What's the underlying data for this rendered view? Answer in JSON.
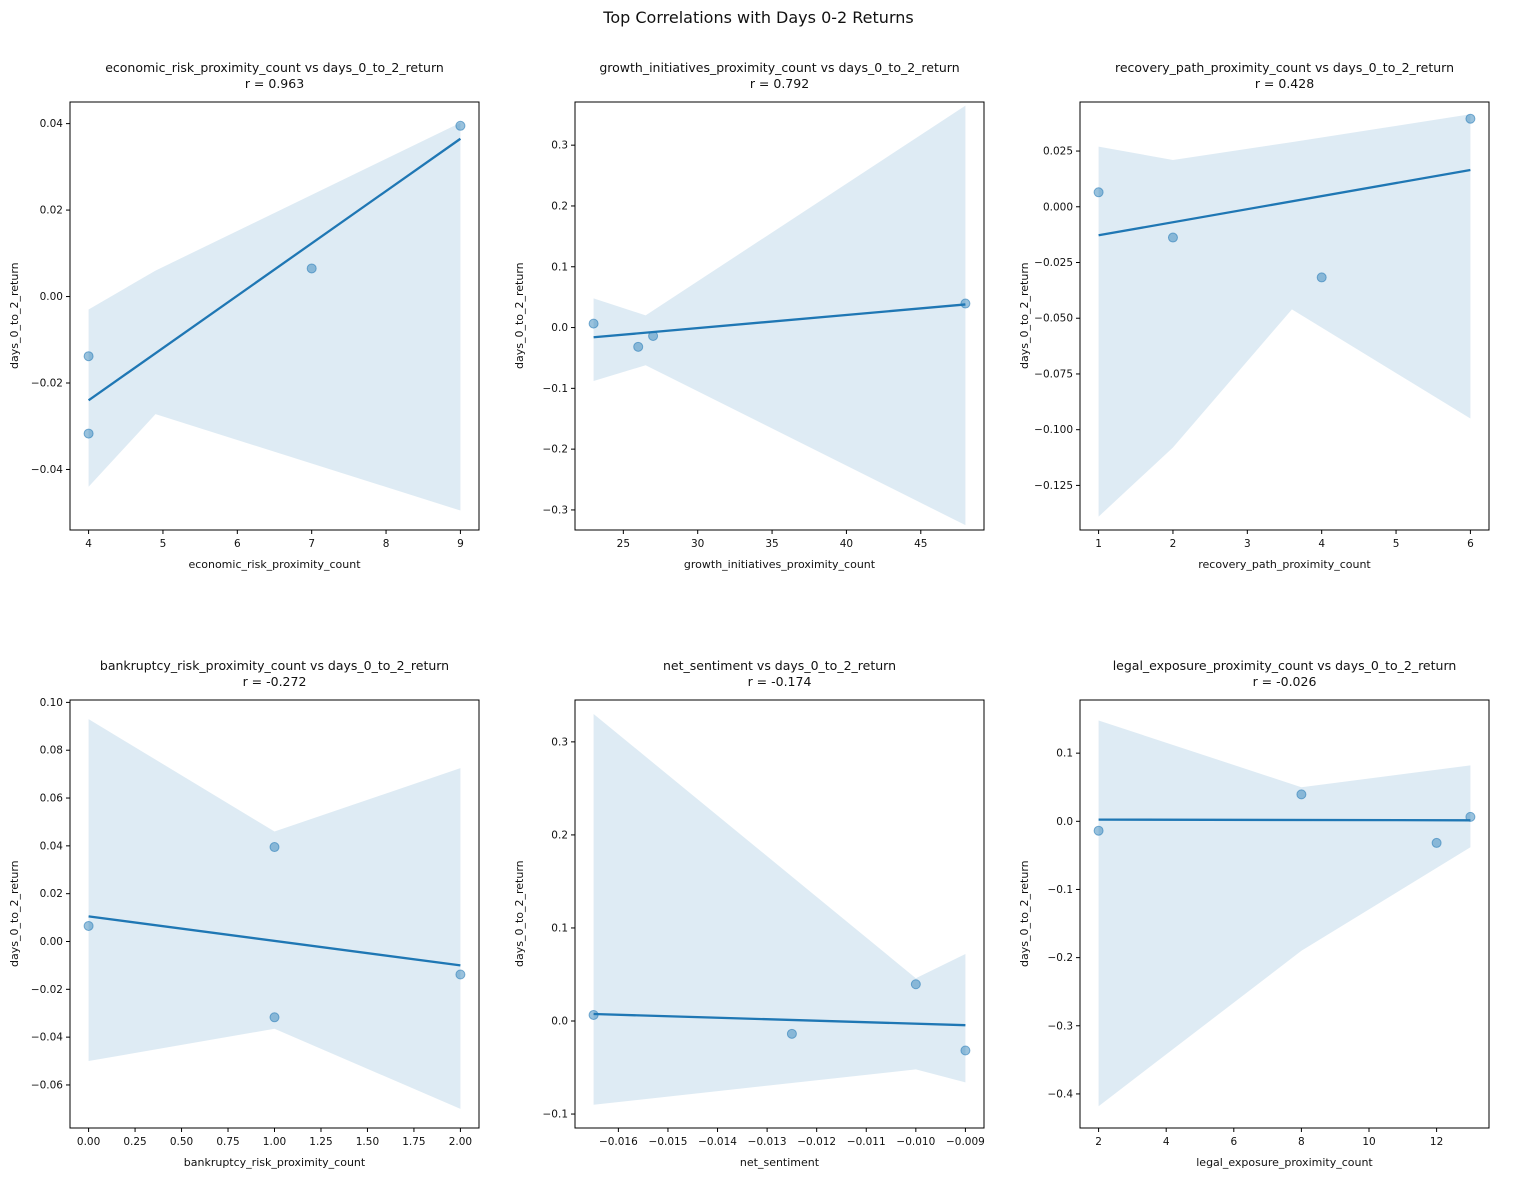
{
  "figure_title": "Top Correlations with Days 0-2 Returns",
  "colors": {
    "accent": "#1f77b4",
    "band_opacity": 0.15,
    "point_opacity": 0.45,
    "frame": "#000000",
    "text": "#111111"
  },
  "chart_data": [
    {
      "type": "scatter",
      "title": "economic_risk_proximity_count vs days_0_to_2_return",
      "r_label": "r = 0.963",
      "r": 0.963,
      "xlabel": "economic_risk_proximity_count",
      "ylabel": "days_0_to_2_return",
      "xlim": [
        3.75,
        9.25
      ],
      "ylim": [
        -0.054,
        0.045
      ],
      "xticks": [
        4,
        5,
        6,
        7,
        8,
        9
      ],
      "xtick_labels": [
        "4",
        "5",
        "6",
        "7",
        "8",
        "9"
      ],
      "yticks": [
        -0.04,
        -0.02,
        0,
        0.02,
        0.04
      ],
      "ytick_labels": [
        "−0.04",
        "−0.02",
        "0.00",
        "0.02",
        "0.04"
      ],
      "points": [
        [
          4,
          -0.0138
        ],
        [
          4,
          -0.0317
        ],
        [
          7,
          0.0065
        ],
        [
          9,
          0.0395
        ]
      ],
      "regression": {
        "x": [
          4,
          9
        ],
        "y": [
          -0.024,
          0.0365
        ]
      },
      "band": {
        "x": [
          4,
          4.9,
          9
        ],
        "upper": [
          -0.003,
          0.006,
          0.0402
        ],
        "lower": [
          -0.044,
          -0.0272,
          -0.0495
        ]
      }
    },
    {
      "type": "scatter",
      "title": "growth_initiatives_proximity_count vs days_0_to_2_return",
      "r_label": "r = 0.792",
      "r": 0.792,
      "xlabel": "growth_initiatives_proximity_count",
      "ylabel": "days_0_to_2_return",
      "xlim": [
        21.75,
        49.25
      ],
      "ylim": [
        -0.333,
        0.371
      ],
      "xticks": [
        25,
        30,
        35,
        40,
        45
      ],
      "xtick_labels": [
        "25",
        "30",
        "35",
        "40",
        "45"
      ],
      "yticks": [
        -0.3,
        -0.2,
        -0.1,
        0,
        0.1,
        0.2,
        0.3
      ],
      "ytick_labels": [
        "−0.3",
        "−0.2",
        "−0.1",
        "0.0",
        "0.1",
        "0.2",
        "0.3"
      ],
      "points": [
        [
          23,
          0.0065
        ],
        [
          26,
          -0.0317
        ],
        [
          27,
          -0.0138
        ],
        [
          48,
          0.0395
        ]
      ],
      "regression": {
        "x": [
          23,
          48
        ],
        "y": [
          -0.016,
          0.038
        ]
      },
      "band": {
        "x": [
          23,
          26.5,
          48
        ],
        "upper": [
          0.048,
          0.02,
          0.365
        ],
        "lower": [
          -0.088,
          -0.062,
          -0.325
        ]
      }
    },
    {
      "type": "scatter",
      "title": "recovery_path_proximity_count vs days_0_to_2_return",
      "r_label": "r = 0.428",
      "r": 0.428,
      "xlabel": "recovery_path_proximity_count",
      "ylabel": "days_0_to_2_return",
      "xlim": [
        0.75,
        6.25
      ],
      "ylim": [
        -0.145,
        0.047
      ],
      "xticks": [
        1,
        2,
        3,
        4,
        5,
        6
      ],
      "xtick_labels": [
        "1",
        "2",
        "3",
        "4",
        "5",
        "6"
      ],
      "yticks": [
        0.025,
        0,
        -0.025,
        -0.05,
        -0.075,
        -0.1,
        -0.125
      ],
      "ytick_labels": [
        "0.025",
        "0.000",
        "−0.025",
        "−0.050",
        "−0.075",
        "−0.100",
        "−0.125"
      ],
      "points": [
        [
          1,
          0.0065
        ],
        [
          2,
          -0.0138
        ],
        [
          4,
          -0.0317
        ],
        [
          6,
          0.0395
        ]
      ],
      "regression": {
        "x": [
          1,
          6
        ],
        "y": [
          -0.0128,
          0.0165
        ]
      },
      "band": {
        "x": [
          1,
          2,
          3.6,
          6
        ],
        "upper": [
          0.027,
          0.021,
          0.029,
          0.0415
        ],
        "lower": [
          -0.139,
          -0.108,
          -0.046,
          -0.095
        ]
      }
    },
    {
      "type": "scatter",
      "title": "bankruptcy_risk_proximity_count vs days_0_to_2_return",
      "r_label": "r = -0.272",
      "r": -0.272,
      "xlabel": "bankruptcy_risk_proximity_count",
      "ylabel": "days_0_to_2_return",
      "xlim": [
        -0.1,
        2.1
      ],
      "ylim": [
        -0.078,
        0.101
      ],
      "xticks": [
        0,
        0.25,
        0.5,
        0.75,
        1,
        1.25,
        1.5,
        1.75,
        2
      ],
      "xtick_labels": [
        "0.00",
        "0.25",
        "0.50",
        "0.75",
        "1.00",
        "1.25",
        "1.50",
        "1.75",
        "2.00"
      ],
      "yticks": [
        -0.06,
        -0.04,
        -0.02,
        0,
        0.02,
        0.04,
        0.06,
        0.08,
        0.1
      ],
      "ytick_labels": [
        "−0.06",
        "−0.04",
        "−0.02",
        "0.00",
        "0.02",
        "0.04",
        "0.06",
        "0.08",
        "0.10"
      ],
      "points": [
        [
          0,
          0.0065
        ],
        [
          1,
          0.0395
        ],
        [
          1,
          -0.0317
        ],
        [
          2,
          -0.0138
        ]
      ],
      "regression": {
        "x": [
          0,
          2
        ],
        "y": [
          0.0105,
          -0.01
        ]
      },
      "band": {
        "x": [
          0,
          1,
          2
        ],
        "upper": [
          0.093,
          0.046,
          0.0725
        ],
        "lower": [
          -0.05,
          -0.0365,
          -0.07
        ]
      }
    },
    {
      "type": "scatter",
      "title": "net_sentiment vs days_0_to_2_return",
      "r_label": "r = -0.174",
      "r": -0.174,
      "xlabel": "net_sentiment",
      "ylabel": "days_0_to_2_return",
      "xlim": [
        -0.016875,
        -0.008625
      ],
      "ylim": [
        -0.115,
        0.345
      ],
      "xticks": [
        -0.016,
        -0.015,
        -0.014,
        -0.013,
        -0.012,
        -0.011,
        -0.01,
        -0.009
      ],
      "xtick_labels": [
        "−0.016",
        "−0.015",
        "−0.014",
        "−0.013",
        "−0.012",
        "−0.011",
        "−0.010",
        "−0.009"
      ],
      "yticks": [
        -0.1,
        0,
        0.1,
        0.2,
        0.3
      ],
      "ytick_labels": [
        "−0.1",
        "0.0",
        "0.1",
        "0.2",
        "0.3"
      ],
      "points": [
        [
          -0.0165,
          0.0065
        ],
        [
          -0.0125,
          -0.0138
        ],
        [
          -0.01,
          0.0395
        ],
        [
          -0.009,
          -0.0317
        ]
      ],
      "regression": {
        "x": [
          -0.0165,
          -0.009
        ],
        "y": [
          0.0075,
          -0.0045
        ]
      },
      "band": {
        "x": [
          -0.0165,
          -0.01,
          -0.009
        ],
        "upper": [
          0.33,
          0.046,
          0.072
        ],
        "lower": [
          -0.09,
          -0.052,
          -0.066
        ]
      }
    },
    {
      "type": "scatter",
      "title": "legal_exposure_proximity_count vs days_0_to_2_return",
      "r_label": "r = -0.026",
      "r": -0.026,
      "xlabel": "legal_exposure_proximity_count",
      "ylabel": "days_0_to_2_return",
      "xlim": [
        1.45,
        13.55
      ],
      "ylim": [
        -0.45,
        0.178
      ],
      "xticks": [
        2,
        4,
        6,
        8,
        10,
        12
      ],
      "xtick_labels": [
        "2",
        "4",
        "6",
        "8",
        "10",
        "12"
      ],
      "yticks": [
        0.1,
        0,
        -0.1,
        -0.2,
        -0.3,
        -0.4
      ],
      "ytick_labels": [
        "0.1",
        "0.0",
        "−0.1",
        "−0.2",
        "−0.3",
        "−0.4"
      ],
      "points": [
        [
          2,
          -0.0138
        ],
        [
          8,
          0.0395
        ],
        [
          12,
          -0.0317
        ],
        [
          13,
          0.0065
        ]
      ],
      "regression": {
        "x": [
          2,
          13
        ],
        "y": [
          0.0025,
          0.0015
        ]
      },
      "band": {
        "x": [
          2,
          8,
          13
        ],
        "upper": [
          0.148,
          0.05,
          0.082
        ],
        "lower": [
          -0.418,
          -0.19,
          -0.038
        ]
      }
    }
  ]
}
